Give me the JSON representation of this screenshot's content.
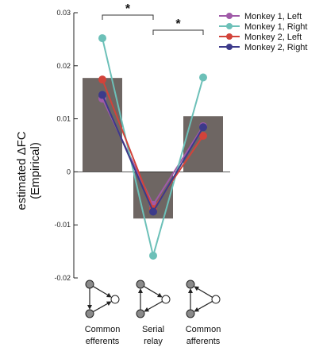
{
  "chart_data": {
    "type": "bar",
    "title": "",
    "xlabel": "",
    "ylabel": "estimated ΔFC",
    "ylabel_sub": "(Empirical)",
    "ylim": [
      -0.02,
      0.03
    ],
    "yticks": [
      -0.02,
      -0.01,
      0,
      0.01,
      0.02,
      0.03
    ],
    "ytick_labels": [
      "-0.02",
      "-0.01",
      "0",
      "0.01",
      "0.02",
      "0.03"
    ],
    "grid": false,
    "legend_position": "top-right",
    "categories": [
      {
        "line1": "Common",
        "line2": "efferents"
      },
      {
        "line1": "Serial",
        "line2": "relay"
      },
      {
        "line1": "Common",
        "line2": "afferents"
      }
    ],
    "bar_color": "#6e6663",
    "values": [
      0.0177,
      -0.0088,
      0.0105
    ],
    "series": [
      {
        "name": "Monkey 1, Left",
        "color": "#a05aa8",
        "values": [
          0.0138,
          -0.0062,
          0.0086
        ]
      },
      {
        "name": "Monkey 1, Right",
        "color": "#6cc0b8",
        "values": [
          0.0252,
          -0.0158,
          0.0178
        ]
      },
      {
        "name": "Monkey 2, Left",
        "color": "#d2433a",
        "values": [
          0.0174,
          -0.007,
          0.0068
        ]
      },
      {
        "name": "Monkey 2, Right",
        "color": "#3c3a8a",
        "values": [
          0.0145,
          -0.0075,
          0.0084
        ]
      }
    ],
    "significance": [
      {
        "from": 0,
        "to": 1,
        "label": "*"
      },
      {
        "from": 1,
        "to": 2,
        "label": "*"
      }
    ],
    "diagram_icons": [
      "common-efferents",
      "serial-relay",
      "common-afferents"
    ]
  }
}
